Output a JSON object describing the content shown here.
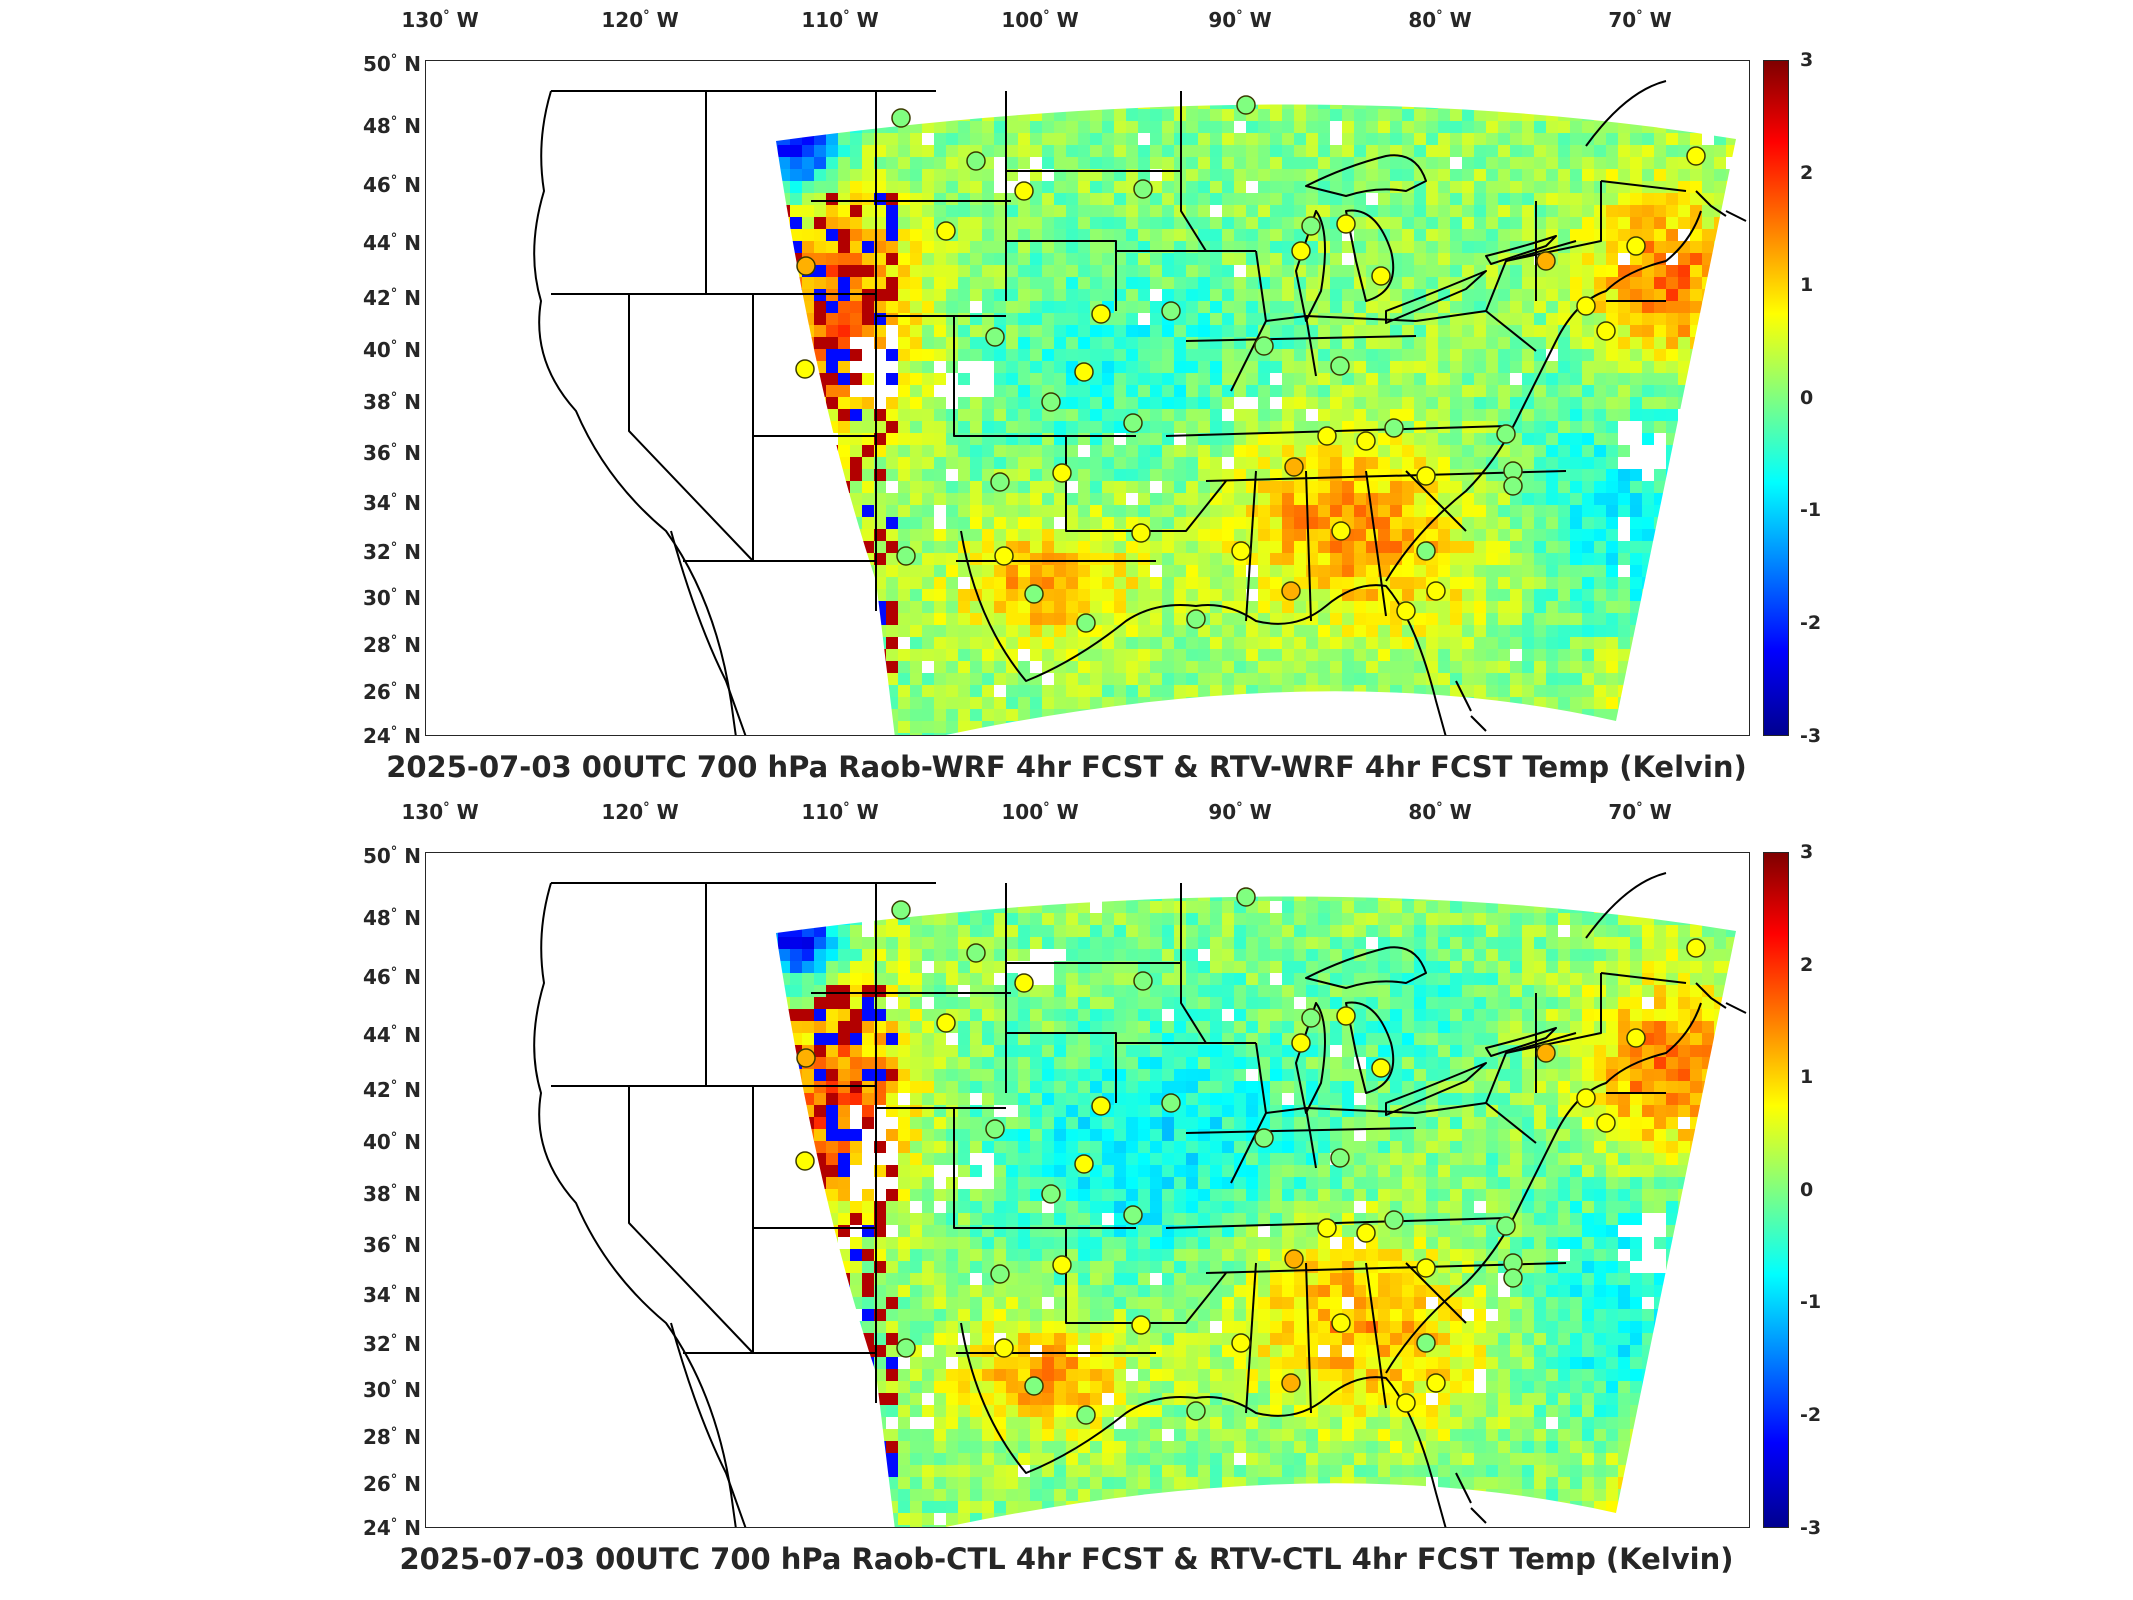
{
  "panels": [
    {
      "title": "2025-07-03 00UTC 700 hPa Raob-WRF 4hr FCST & RTV-WRF 4hr FCST Temp (Kelvin)"
    },
    {
      "title": "2025-07-03 00UTC 700 hPa Raob-CTL 4hr FCST & RTV-CTL 4hr FCST Temp (Kelvin)"
    }
  ],
  "longitude_labels": [
    "130",
    "120",
    "110",
    "100",
    "90",
    "80",
    "70"
  ],
  "longitude_suffix": "W",
  "latitude_labels": [
    "50",
    "48",
    "46",
    "44",
    "42",
    "40",
    "38",
    "36",
    "34",
    "32",
    "30",
    "28",
    "26",
    "24"
  ],
  "latitude_suffix": "N",
  "degree_symbol": "°",
  "colorbar": {
    "ticks": [
      "3",
      "2",
      "1",
      "0",
      "-1",
      "-2",
      "-3"
    ],
    "min": -3,
    "max": 3,
    "colormap": "jet",
    "colors": [
      "#00008f",
      "#0000ff",
      "#0080ff",
      "#00ffff",
      "#80ff80",
      "#ffff00",
      "#ff8000",
      "#ff0000",
      "#7f0000"
    ]
  },
  "raob_station_colors": [
    "#ffff00",
    "#80ff80",
    "#ffb000",
    "#00ffff"
  ]
}
